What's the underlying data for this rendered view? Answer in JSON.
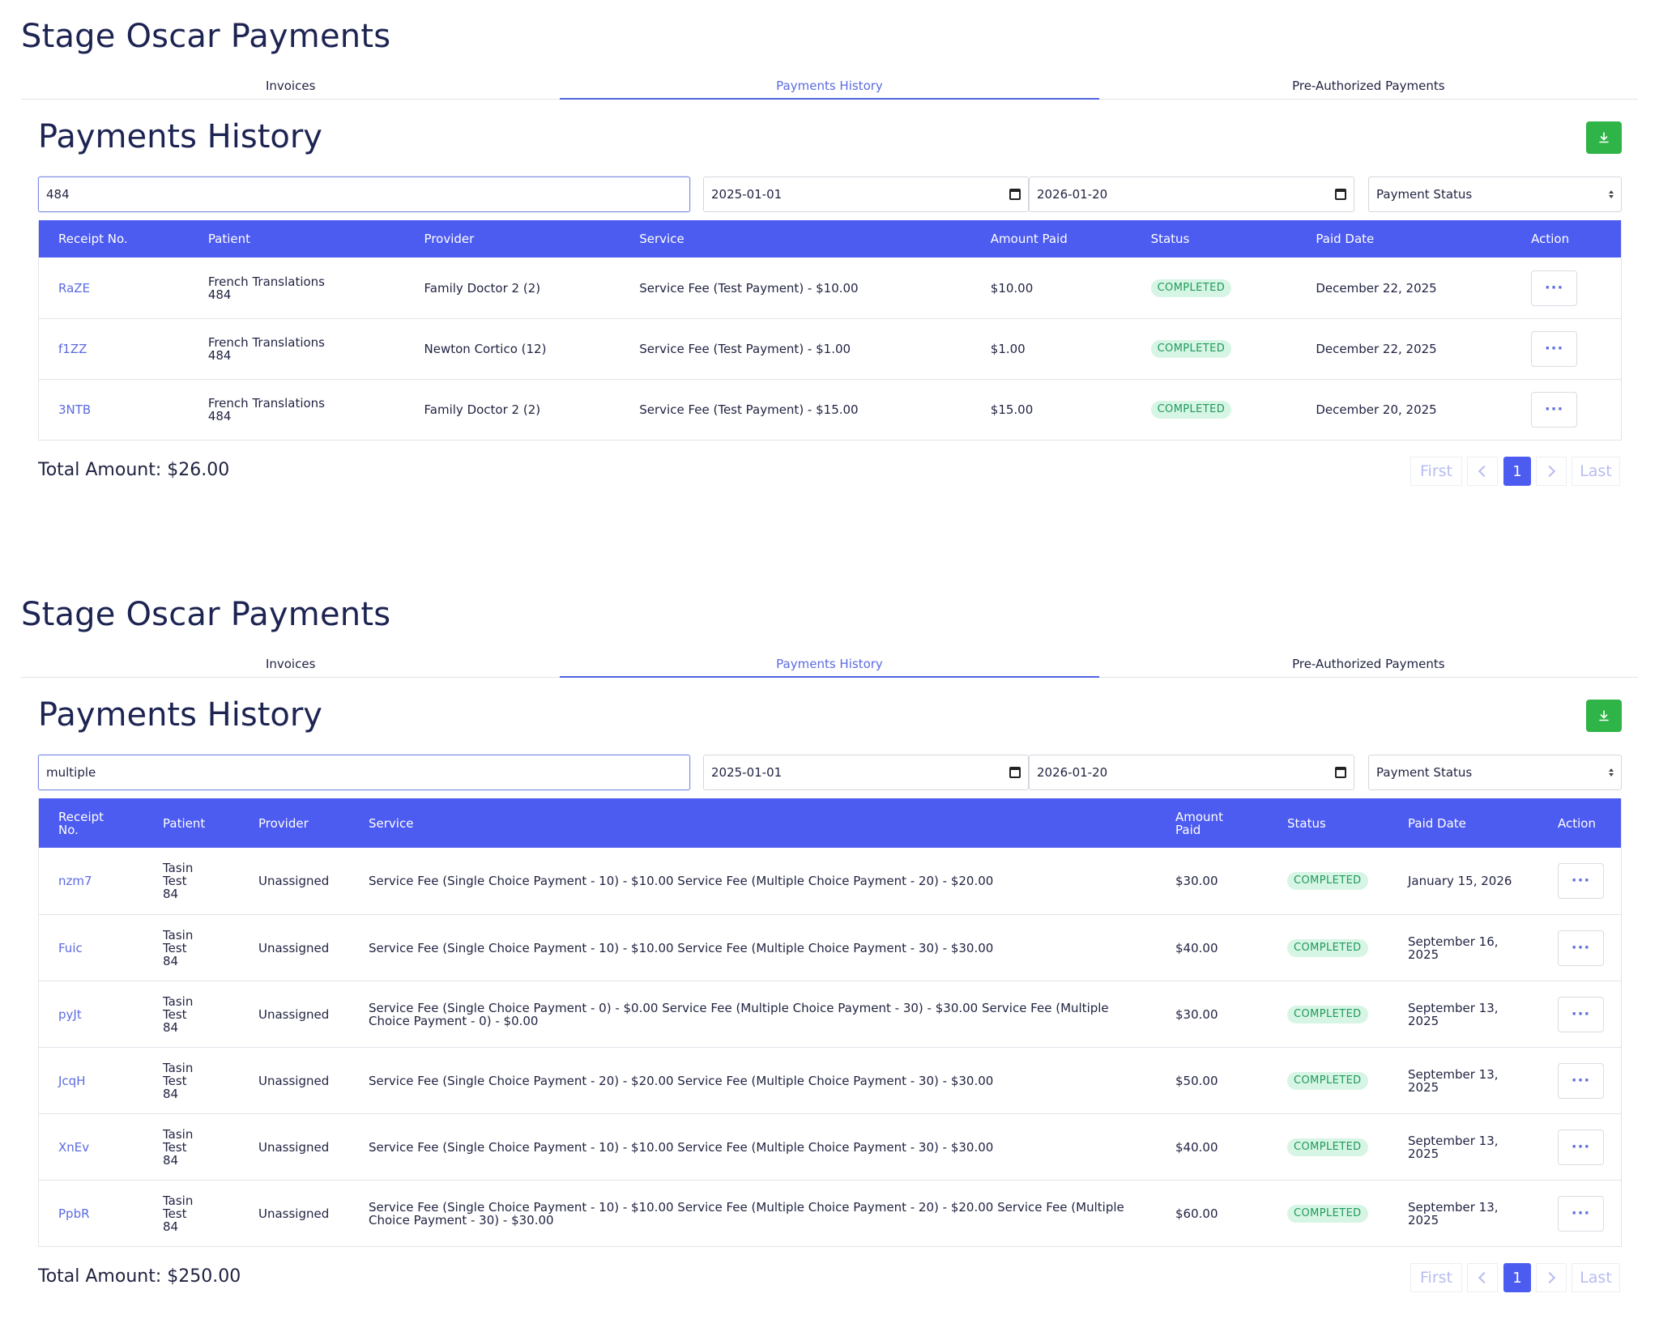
{
  "panels": [
    {
      "app_title": "Stage Oscar Payments",
      "tabs": [
        "Invoices",
        "Payments History",
        "Pre-Authorized Payments"
      ],
      "active_tab": "Payments History",
      "section_title": "Payments History",
      "search_value": "484",
      "date_from": "2025-01-01",
      "date_to": "2026-01-20",
      "status_filter": "Payment Status",
      "columns": [
        "Receipt No.",
        "Patient",
        "Provider",
        "Service",
        "Amount Paid",
        "Status",
        "Paid Date",
        "Action"
      ],
      "rows": [
        {
          "receipt": "RaZE",
          "patient": "French Translations\n484",
          "provider": "Family Doctor 2 (2)",
          "service": "Service Fee (Test Payment) - $10.00",
          "amount": "$10.00",
          "status": "COMPLETED",
          "paid_date": "December 22, 2025"
        },
        {
          "receipt": "f1ZZ",
          "patient": "French Translations\n484",
          "provider": "Newton Cortico (12)",
          "service": "Service Fee (Test Payment) - $1.00",
          "amount": "$1.00",
          "status": "COMPLETED",
          "paid_date": "December 22, 2025"
        },
        {
          "receipt": "3NTB",
          "patient": "French Translations\n484",
          "provider": "Family Doctor 2 (2)",
          "service": "Service Fee (Test Payment) - $15.00",
          "amount": "$15.00",
          "status": "COMPLETED",
          "paid_date": "December 20, 2025"
        }
      ],
      "total": "Total Amount: $26.00",
      "pagination": {
        "first": "First",
        "current": "1",
        "last": "Last"
      }
    },
    {
      "app_title": "Stage Oscar Payments",
      "tabs": [
        "Invoices",
        "Payments History",
        "Pre-Authorized Payments"
      ],
      "active_tab": "Payments History",
      "section_title": "Payments History",
      "search_value": "multiple",
      "date_from": "2025-01-01",
      "date_to": "2026-01-20",
      "status_filter": "Payment Status",
      "columns": [
        "Receipt\nNo.",
        "Patient",
        "Provider",
        "Service",
        "Amount\nPaid",
        "Status",
        "Paid Date",
        "Action"
      ],
      "rows": [
        {
          "receipt": "nzm7",
          "patient": "Tasin\nTest\n84",
          "provider": "Unassigned",
          "service": "Service Fee (Single Choice Payment - 10) - $10.00 Service Fee (Multiple Choice Payment - 20) - $20.00",
          "amount": "$30.00",
          "status": "COMPLETED",
          "paid_date": "January 15, 2026"
        },
        {
          "receipt": "Fuic",
          "patient": "Tasin\nTest\n84",
          "provider": "Unassigned",
          "service": "Service Fee (Single Choice Payment - 10) - $10.00 Service Fee (Multiple Choice Payment - 30) - $30.00",
          "amount": "$40.00",
          "status": "COMPLETED",
          "paid_date": "September 16,\n2025"
        },
        {
          "receipt": "pyJt",
          "patient": "Tasin\nTest\n84",
          "provider": "Unassigned",
          "service": "Service Fee (Single Choice Payment - 0) - $0.00 Service Fee (Multiple Choice Payment - 30) - $30.00 Service Fee (Multiple\nChoice Payment - 0) - $0.00",
          "amount": "$30.00",
          "status": "COMPLETED",
          "paid_date": "September 13,\n2025"
        },
        {
          "receipt": "JcqH",
          "patient": "Tasin\nTest\n84",
          "provider": "Unassigned",
          "service": "Service Fee (Single Choice Payment - 20) - $20.00 Service Fee (Multiple Choice Payment - 30) - $30.00",
          "amount": "$50.00",
          "status": "COMPLETED",
          "paid_date": "September 13,\n2025"
        },
        {
          "receipt": "XnEv",
          "patient": "Tasin\nTest\n84",
          "provider": "Unassigned",
          "service": "Service Fee (Single Choice Payment - 10) - $10.00 Service Fee (Multiple Choice Payment - 30) - $30.00",
          "amount": "$40.00",
          "status": "COMPLETED",
          "paid_date": "September 13,\n2025"
        },
        {
          "receipt": "PpbR",
          "patient": "Tasin\nTest\n84",
          "provider": "Unassigned",
          "service": "Service Fee (Single Choice Payment - 10) - $10.00 Service Fee (Multiple Choice Payment - 20) - $20.00 Service Fee (Multiple\nChoice Payment - 30) - $30.00",
          "amount": "$60.00",
          "status": "COMPLETED",
          "paid_date": "September 13,\n2025"
        }
      ],
      "total": "Total Amount: $250.00",
      "pagination": {
        "first": "First",
        "current": "1",
        "last": "Last"
      }
    }
  ],
  "icons": {
    "download": "download-icon",
    "calendar": "calendar-icon",
    "more": "more-horizontal-icon",
    "prev": "chevron-left-icon",
    "next": "chevron-right-icon"
  },
  "colors": {
    "accent": "#4c5bf0",
    "link": "#5b6be0",
    "success_bg": "#d7f5e5",
    "success_text": "#1f9a5a",
    "download_btn": "#2fb448"
  }
}
